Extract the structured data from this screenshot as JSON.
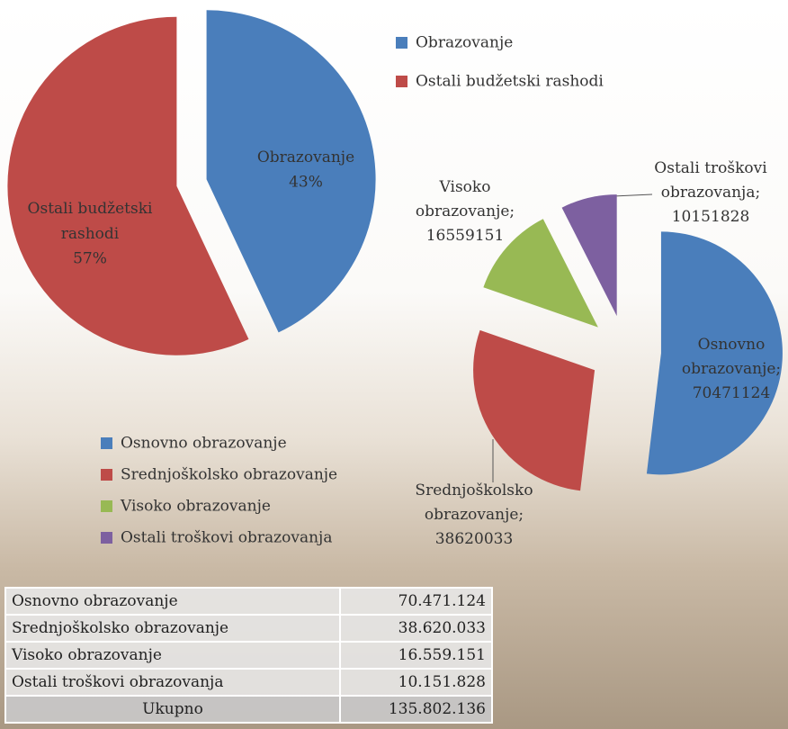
{
  "chart_data": [
    {
      "type": "pie",
      "categories": [
        "Obrazovanje",
        "Ostali budžetski rashodi"
      ],
      "values": [
        43,
        57
      ],
      "value_labels": [
        "43%",
        "57%"
      ],
      "colors": [
        "#4a7ebb",
        "#be4b48"
      ],
      "legend": "top-right"
    },
    {
      "type": "pie",
      "categories": [
        "Osnovno obrazovanje",
        "Srednjoškolsko obrazovanje",
        "Visoko obrazovanje",
        "Ostali troškovi obrazovanja"
      ],
      "values": [
        70471124,
        38620033,
        16559151,
        10151828
      ],
      "value_labels": [
        "Osnovno obrazovanje; 70471124",
        "Srednjoškolsko obrazovanje; 38620033",
        "Visoko obrazovanje; 16559151",
        "Ostali troškovi obrazovanja; 10151828"
      ],
      "colors": [
        "#4a7ebb",
        "#be4b48",
        "#98b954",
        "#7d60a0"
      ],
      "legend": "bottom-left"
    }
  ],
  "table": {
    "rows": [
      [
        "Osnovno obrazovanje",
        "70.471.124"
      ],
      [
        "Srednjoškolsko obrazovanje",
        "38.620.033"
      ],
      [
        "Visoko obrazovanje",
        "16.559.151"
      ],
      [
        "Ostali troškovi obrazovanja",
        "10.151.828"
      ]
    ],
    "total": [
      "Ukupno",
      "135.802.136"
    ]
  }
}
